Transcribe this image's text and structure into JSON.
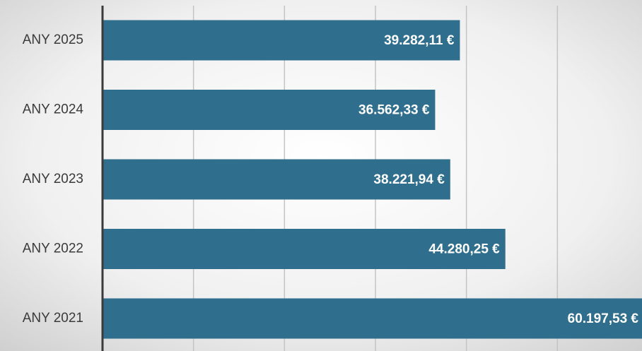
{
  "chart_data": {
    "type": "bar",
    "orientation": "horizontal",
    "categories": [
      "ANY 2025",
      "ANY 2024",
      "ANY 2023",
      "ANY 2022",
      "ANY 2021"
    ],
    "values": [
      39282.11,
      36562.33,
      38221.94,
      44280.25,
      60197.53
    ],
    "value_labels": [
      "39.282,11 €",
      "36.562,33 €",
      "38.221,94 €",
      "44.280,25 €",
      "60.197,53 €"
    ],
    "color": "#2f6e8c",
    "xlim": [
      0,
      60000
    ],
    "xticks": [
      0,
      10000,
      20000,
      30000,
      40000,
      50000,
      60000
    ],
    "grid": true
  }
}
